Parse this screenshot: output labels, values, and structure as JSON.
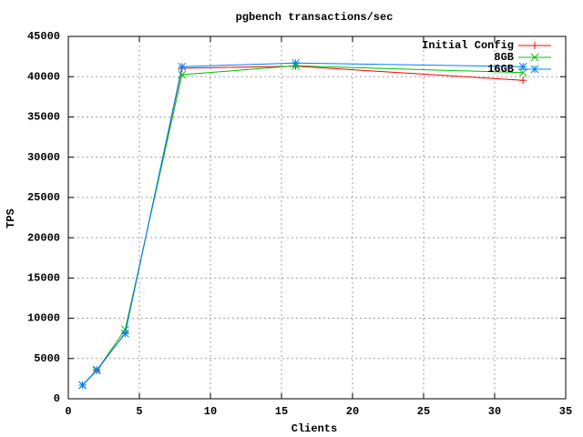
{
  "chart_data": {
    "type": "line",
    "title": "pgbench transactions/sec",
    "x_label": "Clients",
    "y_label": "TPS",
    "xlim": [
      0,
      35
    ],
    "xticks": [
      0,
      5,
      10,
      15,
      20,
      25,
      30,
      35
    ],
    "ylim": [
      0,
      45000
    ],
    "yticks": [
      0,
      5000,
      10000,
      15000,
      20000,
      25000,
      30000,
      35000,
      40000,
      45000
    ],
    "grid": true,
    "legend": "top-right",
    "series": [
      {
        "name": "Initial Config",
        "color": "#ff0000",
        "marker": "plus",
        "x": [
          1,
          2,
          4,
          8,
          16,
          32
        ],
        "values": [
          1700,
          3500,
          8150,
          41050,
          41300,
          39550
        ]
      },
      {
        "name": "8GB",
        "color": "#00c000",
        "marker": "cross",
        "x": [
          1,
          2,
          4,
          8,
          16,
          32
        ],
        "values": [
          1700,
          3500,
          8600,
          40250,
          41350,
          40500
        ]
      },
      {
        "name": "16GB",
        "color": "#0080ff",
        "marker": "star",
        "x": [
          1,
          2,
          4,
          8,
          16,
          32
        ],
        "values": [
          1700,
          3600,
          8100,
          41250,
          41700,
          41250
        ]
      }
    ]
  }
}
